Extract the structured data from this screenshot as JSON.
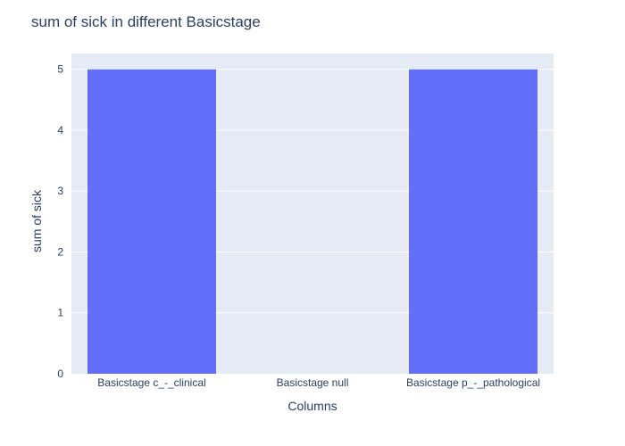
{
  "chart_data": {
    "type": "bar",
    "title": "sum of sick in different Basicstage",
    "xlabel": "Columns",
    "ylabel": "sum of sick",
    "categories": [
      "Basicstage c_-_clinical",
      "Basicstage null",
      "Basicstage p_-_pathological"
    ],
    "values": [
      5,
      0,
      5
    ],
    "ylim": [
      0,
      5.26
    ],
    "yticks": [
      0,
      1,
      2,
      3,
      4,
      5
    ],
    "grid": true,
    "colors": {
      "bar": "#636efa",
      "plot_bg": "#e5ecf6",
      "grid": "#ffffff",
      "text": "#2a3f5f"
    }
  }
}
